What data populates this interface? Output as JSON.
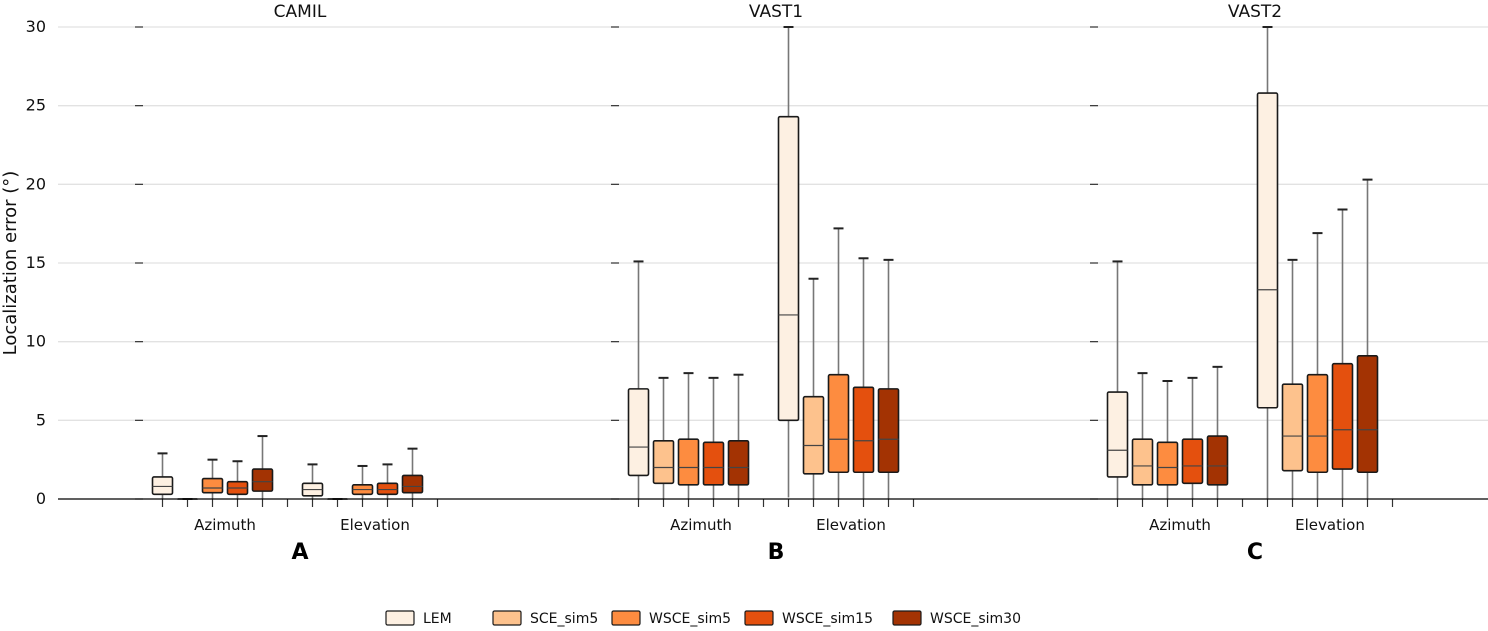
{
  "chart_data": {
    "type": "box",
    "ylabel": "Localization error (°)",
    "ylim": [
      0,
      30
    ],
    "yticks": [
      0,
      5,
      10,
      15,
      20,
      25,
      30
    ],
    "grid": "horizontal",
    "legend_position": "bottom-center",
    "series": [
      {
        "name": "LEM",
        "color": "#fdf0e2"
      },
      {
        "name": "SCE_sim5",
        "color": "#fdc28d"
      },
      {
        "name": "WSCE_sim5",
        "color": "#fd8c40"
      },
      {
        "name": "WSCE_sim15",
        "color": "#e4500e"
      },
      {
        "name": "WSCE_sim30",
        "color": "#a33303"
      }
    ],
    "panels": [
      {
        "title": "CAMIL",
        "letter": "A",
        "groups": [
          {
            "label": "Azimuth",
            "boxes": [
              {
                "series": "LEM",
                "whislo": 0,
                "q1": 0.3,
                "median": 0.8,
                "q3": 1.4,
                "whishi": 2.9
              },
              {
                "series": "SCE_sim5",
                "whislo": 0,
                "q1": 0,
                "median": 0,
                "q3": 0,
                "whishi": 0
              },
              {
                "series": "WSCE_sim5",
                "whislo": 0,
                "q1": 0.4,
                "median": 0.7,
                "q3": 1.3,
                "whishi": 2.5
              },
              {
                "series": "WSCE_sim15",
                "whislo": 0,
                "q1": 0.3,
                "median": 0.7,
                "q3": 1.1,
                "whishi": 2.4
              },
              {
                "series": "WSCE_sim30",
                "whislo": 0,
                "q1": 0.5,
                "median": 1.1,
                "q3": 1.9,
                "whishi": 4.0
              }
            ]
          },
          {
            "label": "Elevation",
            "boxes": [
              {
                "series": "LEM",
                "whislo": 0,
                "q1": 0.2,
                "median": 0.6,
                "q3": 1.0,
                "whishi": 2.2
              },
              {
                "series": "SCE_sim5",
                "whislo": 0,
                "q1": 0,
                "median": 0,
                "q3": 0,
                "whishi": 0
              },
              {
                "series": "WSCE_sim5",
                "whislo": 0,
                "q1": 0.3,
                "median": 0.6,
                "q3": 0.9,
                "whishi": 2.1
              },
              {
                "series": "WSCE_sim15",
                "whislo": 0,
                "q1": 0.3,
                "median": 0.6,
                "q3": 1.0,
                "whishi": 2.2
              },
              {
                "series": "WSCE_sim30",
                "whislo": 0,
                "q1": 0.4,
                "median": 0.8,
                "q3": 1.5,
                "whishi": 3.2
              }
            ]
          }
        ]
      },
      {
        "title": "VAST1",
        "letter": "B",
        "groups": [
          {
            "label": "Azimuth",
            "boxes": [
              {
                "series": "LEM",
                "whislo": 0,
                "q1": 1.5,
                "median": 3.3,
                "q3": 7.0,
                "whishi": 15.1
              },
              {
                "series": "SCE_sim5",
                "whislo": 0,
                "q1": 1.0,
                "median": 2.0,
                "q3": 3.7,
                "whishi": 7.7
              },
              {
                "series": "WSCE_sim5",
                "whislo": 0,
                "q1": 0.9,
                "median": 2.0,
                "q3": 3.8,
                "whishi": 8.0
              },
              {
                "series": "WSCE_sim15",
                "whislo": 0,
                "q1": 0.9,
                "median": 2.0,
                "q3": 3.6,
                "whishi": 7.7
              },
              {
                "series": "WSCE_sim30",
                "whislo": 0,
                "q1": 0.9,
                "median": 2.0,
                "q3": 3.7,
                "whishi": 7.9
              }
            ]
          },
          {
            "label": "Elevation",
            "boxes": [
              {
                "series": "LEM",
                "whislo": 0.1,
                "q1": 5.0,
                "median": 11.7,
                "q3": 24.3,
                "whishi": 30.0
              },
              {
                "series": "SCE_sim5",
                "whislo": 0,
                "q1": 1.6,
                "median": 3.4,
                "q3": 6.5,
                "whishi": 14.0
              },
              {
                "series": "WSCE_sim5",
                "whislo": 0,
                "q1": 1.7,
                "median": 3.8,
                "q3": 7.9,
                "whishi": 17.2
              },
              {
                "series": "WSCE_sim15",
                "whislo": 0,
                "q1": 1.7,
                "median": 3.7,
                "q3": 7.1,
                "whishi": 15.3
              },
              {
                "series": "WSCE_sim30",
                "whislo": 0,
                "q1": 1.7,
                "median": 3.8,
                "q3": 7.0,
                "whishi": 15.2
              }
            ]
          }
        ]
      },
      {
        "title": "VAST2",
        "letter": "C",
        "groups": [
          {
            "label": "Azimuth",
            "boxes": [
              {
                "series": "LEM",
                "whislo": 0,
                "q1": 1.4,
                "median": 3.1,
                "q3": 6.8,
                "whishi": 15.1
              },
              {
                "series": "SCE_sim5",
                "whislo": 0,
                "q1": 0.9,
                "median": 2.1,
                "q3": 3.8,
                "whishi": 8.0
              },
              {
                "series": "WSCE_sim5",
                "whislo": 0,
                "q1": 0.9,
                "median": 2.0,
                "q3": 3.6,
                "whishi": 7.5
              },
              {
                "series": "WSCE_sim15",
                "whislo": 0,
                "q1": 1.0,
                "median": 2.1,
                "q3": 3.8,
                "whishi": 7.7
              },
              {
                "series": "WSCE_sim30",
                "whislo": 0,
                "q1": 0.9,
                "median": 2.1,
                "q3": 4.0,
                "whishi": 8.4
              }
            ]
          },
          {
            "label": "Elevation",
            "boxes": [
              {
                "series": "LEM",
                "whislo": 0,
                "q1": 5.8,
                "median": 13.3,
                "q3": 25.8,
                "whishi": 30.0
              },
              {
                "series": "SCE_sim5",
                "whislo": 0,
                "q1": 1.8,
                "median": 4.0,
                "q3": 7.3,
                "whishi": 15.2
              },
              {
                "series": "WSCE_sim5",
                "whislo": 0,
                "q1": 1.7,
                "median": 4.0,
                "q3": 7.9,
                "whishi": 16.9
              },
              {
                "series": "WSCE_sim15",
                "whislo": 0,
                "q1": 1.9,
                "median": 4.4,
                "q3": 8.6,
                "whishi": 18.4
              },
              {
                "series": "WSCE_sim30",
                "whislo": 0,
                "q1": 1.7,
                "median": 4.4,
                "q3": 9.1,
                "whishi": 20.3
              }
            ]
          }
        ]
      }
    ]
  }
}
